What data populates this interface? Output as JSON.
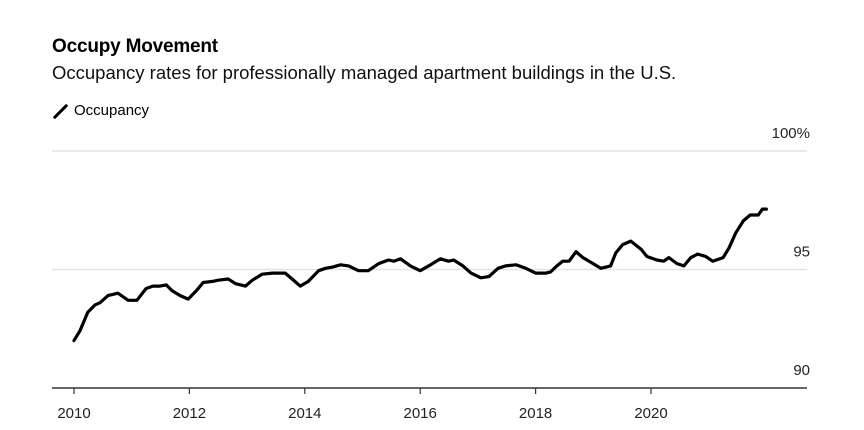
{
  "title": "Occupy Movement",
  "subtitle": "Occupancy rates for professionally managed apartment buildings in the U.S.",
  "legend": [
    {
      "label": "Occupancy",
      "color": "#000000"
    }
  ],
  "chart_data": {
    "type": "line",
    "title": "Occupy Movement",
    "subtitle": "Occupancy rates for professionally managed apartment buildings in the U.S.",
    "xlabel": "",
    "ylabel": "",
    "xlim": [
      2010,
      2022.6
    ],
    "ylim": [
      90,
      100
    ],
    "x_ticks": [
      2010,
      2012,
      2014,
      2016,
      2018,
      2020
    ],
    "x_tick_labels": [
      "2010",
      "2012",
      "2014",
      "2016",
      "2018",
      "2020"
    ],
    "y_ticks": [
      90,
      95,
      100
    ],
    "y_tick_labels": [
      "90",
      "95",
      "100%"
    ],
    "y_axis_position": "right",
    "grid": true,
    "legend_position": "top-left",
    "series": [
      {
        "name": "Occupancy",
        "color": "#000000",
        "x": [
          2010.0,
          2010.1,
          2010.24,
          2010.36,
          2010.45,
          2010.59,
          2010.76,
          2010.94,
          2011.09,
          2011.25,
          2011.37,
          2011.49,
          2011.6,
          2011.7,
          2011.84,
          2011.98,
          2012.12,
          2012.24,
          2012.4,
          2012.5,
          2012.67,
          2012.8,
          2012.97,
          2013.09,
          2013.26,
          2013.44,
          2013.66,
          2013.78,
          2013.92,
          2014.06,
          2014.24,
          2014.36,
          2014.48,
          2014.62,
          2014.76,
          2014.93,
          2015.1,
          2015.28,
          2015.45,
          2015.54,
          2015.66,
          2015.83,
          2016.0,
          2016.18,
          2016.35,
          2016.49,
          2016.58,
          2016.74,
          2016.88,
          2017.05,
          2017.19,
          2017.35,
          2017.48,
          2017.66,
          2017.83,
          2018.0,
          2018.18,
          2018.26,
          2018.37,
          2018.47,
          2018.58,
          2018.7,
          2018.82,
          2018.96,
          2019.13,
          2019.3,
          2019.39,
          2019.51,
          2019.65,
          2019.83,
          2019.93,
          2020.1,
          2020.22,
          2020.31,
          2020.45,
          2020.57,
          2020.69,
          2020.81,
          2020.95,
          2021.07,
          2021.25,
          2021.35,
          2021.47,
          2021.6,
          2021.72,
          2021.86,
          2021.93,
          2022.0
        ],
        "values": [
          92.0,
          92.4,
          93.2,
          93.5,
          93.6,
          93.9,
          94.0,
          93.7,
          93.7,
          94.2,
          94.3,
          94.3,
          94.35,
          94.1,
          93.9,
          93.75,
          94.1,
          94.45,
          94.5,
          94.55,
          94.6,
          94.4,
          94.3,
          94.55,
          94.8,
          94.85,
          94.85,
          94.6,
          94.3,
          94.5,
          94.95,
          95.05,
          95.1,
          95.2,
          95.15,
          94.95,
          94.95,
          95.25,
          95.4,
          95.35,
          95.45,
          95.15,
          94.95,
          95.2,
          95.45,
          95.35,
          95.4,
          95.15,
          94.85,
          94.65,
          94.7,
          95.05,
          95.15,
          95.2,
          95.05,
          94.85,
          94.85,
          94.9,
          95.15,
          95.35,
          95.35,
          95.75,
          95.5,
          95.3,
          95.05,
          95.15,
          95.7,
          96.05,
          96.2,
          95.85,
          95.55,
          95.4,
          95.35,
          95.5,
          95.25,
          95.15,
          95.5,
          95.65,
          95.55,
          95.35,
          95.5,
          95.9,
          96.55,
          97.05,
          97.3,
          97.3,
          97.55,
          97.55
        ]
      }
    ]
  }
}
